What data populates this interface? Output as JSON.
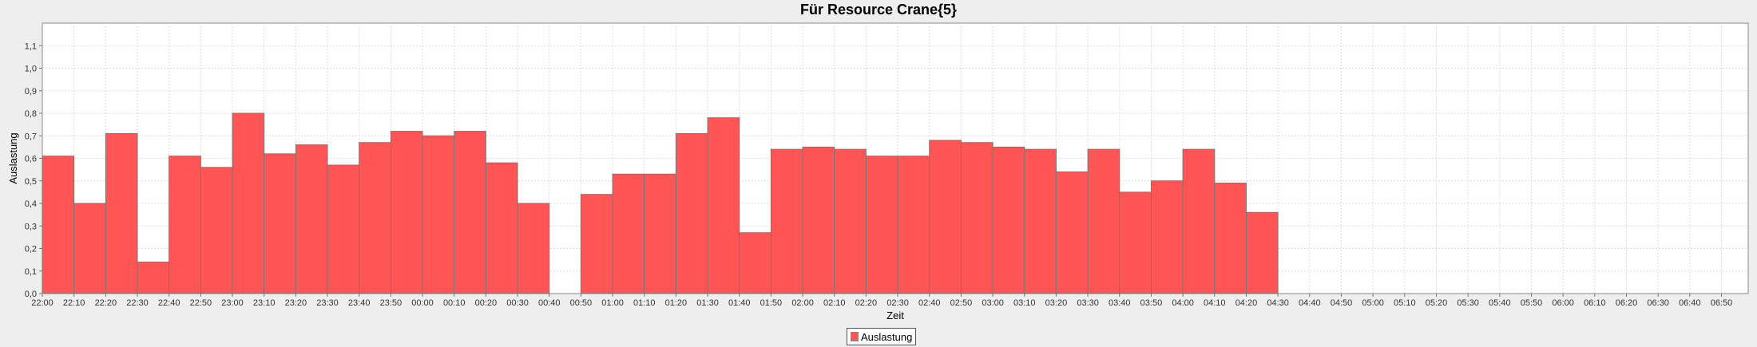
{
  "chart_data": {
    "type": "bar",
    "title": "Für Resource Crane{5}",
    "xlabel": "Zeit",
    "ylabel": "Auslastung",
    "ylim": [
      0,
      1.2
    ],
    "yticks": [
      "0,0",
      "0,1",
      "0,2",
      "0,3",
      "0,4",
      "0,5",
      "0,6",
      "0,7",
      "0,8",
      "0,9",
      "1,0",
      "1,1"
    ],
    "grid": true,
    "legend_position": "bottom",
    "bar_color": "#ff5555",
    "categories": [
      "22:00",
      "22:10",
      "22:20",
      "22:30",
      "22:40",
      "22:50",
      "23:00",
      "23:10",
      "23:20",
      "23:30",
      "23:40",
      "23:50",
      "00:00",
      "00:10",
      "00:20",
      "00:30",
      "00:40",
      "00:50",
      "01:00",
      "01:10",
      "01:20",
      "01:30",
      "01:40",
      "01:50",
      "02:00",
      "02:10",
      "02:20",
      "02:30",
      "02:40",
      "02:50",
      "03:00",
      "03:10",
      "03:20",
      "03:30",
      "03:40",
      "03:50",
      "04:00",
      "04:10",
      "04:20",
      "04:30",
      "04:40",
      "04:50",
      "05:00",
      "05:10",
      "05:20",
      "05:30",
      "05:40",
      "05:50",
      "06:00",
      "06:10",
      "06:20",
      "06:30",
      "06:40",
      "06:50"
    ],
    "series": [
      {
        "name": "Auslastung",
        "values": [
          0.61,
          0.4,
          0.71,
          0.14,
          0.61,
          0.56,
          0.8,
          0.62,
          0.66,
          0.57,
          0.67,
          0.72,
          0.7,
          0.72,
          0.58,
          0.4,
          0,
          0.44,
          0.53,
          0.53,
          0.71,
          0.78,
          0.27,
          0.64,
          0.65,
          0.64,
          0.61,
          0.61,
          0.68,
          0.67,
          0.65,
          0.64,
          0.54,
          0.64,
          0.45,
          0.5,
          0.64,
          0.49,
          0.36,
          0,
          0,
          0,
          0,
          0,
          0,
          0,
          0,
          0,
          0,
          0,
          0,
          0,
          0,
          0
        ]
      }
    ]
  }
}
